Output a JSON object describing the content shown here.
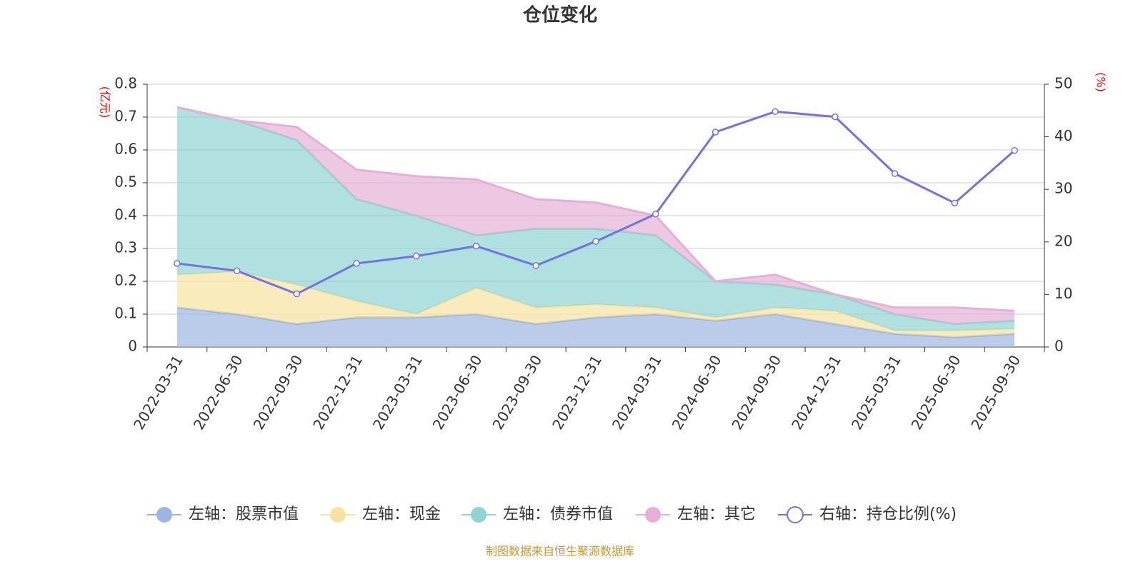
{
  "chart_data": {
    "type": "stacked-area-line",
    "title": "仓位变化",
    "y_label": "(亿元)",
    "y2_label": "(%)",
    "source": "制图数据来自恒生聚源数据库",
    "categories": [
      "2022-03-31",
      "2022-06-30",
      "2022-09-30",
      "2022-12-31",
      "2023-03-31",
      "2023-06-30",
      "2023-09-30",
      "2023-12-31",
      "2024-03-31",
      "2024-06-30",
      "2024-09-30",
      "2024-12-31",
      "2025-03-31",
      "2025-06-30",
      "2025-09-30"
    ],
    "ylim": [
      0,
      0.8
    ],
    "yticks": [
      0,
      0.1,
      0.2,
      0.3,
      0.4,
      0.5,
      0.6,
      0.7,
      0.8
    ],
    "y2lim": [
      0,
      50
    ],
    "y2ticks": [
      0,
      10,
      20,
      30,
      40,
      50
    ],
    "grid": true,
    "series": [
      {
        "name": "左轴：股票市值",
        "color": "#9db6e0",
        "values": [
          0.12,
          0.1,
          0.07,
          0.09,
          0.09,
          0.1,
          0.07,
          0.09,
          0.1,
          0.08,
          0.1,
          0.07,
          0.04,
          0.03,
          0.04
        ]
      },
      {
        "name": "左轴：现金",
        "color": "#f7e3a0",
        "values": [
          0.1,
          0.13,
          0.12,
          0.05,
          0.01,
          0.08,
          0.05,
          0.04,
          0.02,
          0.01,
          0.02,
          0.04,
          0.01,
          0.02,
          0.015
        ]
      },
      {
        "name": "左轴：债券市值",
        "color": "#8fd3d3",
        "values": [
          0.51,
          0.46,
          0.44,
          0.31,
          0.3,
          0.16,
          0.24,
          0.23,
          0.22,
          0.11,
          0.07,
          0.05,
          0.05,
          0.02,
          0.025
        ]
      },
      {
        "name": "左轴：其它",
        "color": "#e6b0d6",
        "values": [
          0,
          0,
          0.04,
          0.09,
          0.12,
          0.17,
          0.09,
          0.08,
          0.06,
          0,
          0.03,
          0,
          0.02,
          0.05,
          0.03
        ]
      },
      {
        "name": "右轴：持仓比例(%)",
        "color": "#7272e8",
        "axis": "y2",
        "values": [
          15.9,
          14.5,
          10.1,
          15.9,
          17.3,
          19.2,
          15.5,
          20.1,
          25.3,
          40.9,
          44.8,
          43.8,
          33.0,
          27.4,
          37.4
        ]
      }
    ]
  }
}
